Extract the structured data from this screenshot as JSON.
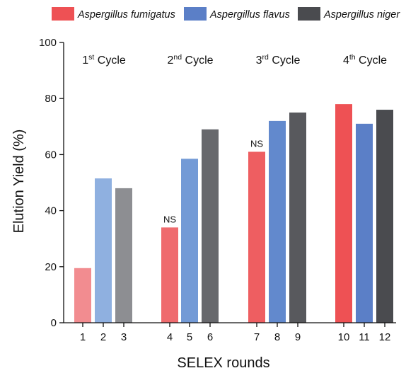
{
  "chart_data": {
    "type": "bar",
    "xlabel": "SELEX rounds",
    "ylabel": "Elution Yield (%)",
    "ylim": [
      0,
      100
    ],
    "yticks": [
      "0",
      "20",
      "40",
      "60",
      "80",
      "100"
    ],
    "grid": false,
    "legend_position": "top",
    "legend": [
      {
        "name": "Aspergillus fumigatus",
        "color": "#ee5154"
      },
      {
        "name": "Aspergillus flavus",
        "color": "#5b7fc7"
      },
      {
        "name": "Aspergillus niger",
        "color": "#4a4b4f"
      }
    ],
    "cycles": [
      {
        "number": "1",
        "suffix": "st",
        "word": "Cycle"
      },
      {
        "number": "2",
        "suffix": "nd",
        "word": "Cycle"
      },
      {
        "number": "3",
        "suffix": "rd",
        "word": "Cycle"
      },
      {
        "number": "4",
        "suffix": "th",
        "word": "Cycle"
      }
    ],
    "categories": [
      "1",
      "2",
      "3",
      "4",
      "5",
      "6",
      "7",
      "8",
      "9",
      "10",
      "11",
      "12"
    ],
    "bars": [
      {
        "round": "1",
        "value": 19.5,
        "species": "Aspergillus fumigatus",
        "color": "#f28c90"
      },
      {
        "round": "2",
        "value": 51.5,
        "species": "Aspergillus flavus",
        "color": "#8fb0e0"
      },
      {
        "round": "3",
        "value": 48,
        "species": "Aspergillus niger",
        "color": "#8d8e92"
      },
      {
        "round": "4",
        "value": 34,
        "species": "Aspergillus fumigatus",
        "color": "#ef6b6e",
        "annotation": "NS"
      },
      {
        "round": "5",
        "value": 58.5,
        "species": "Aspergillus flavus",
        "color": "#739ad6"
      },
      {
        "round": "6",
        "value": 69,
        "species": "Aspergillus niger",
        "color": "#67686c"
      },
      {
        "round": "7",
        "value": 61,
        "species": "Aspergillus fumigatus",
        "color": "#ee5e61",
        "annotation": "NS"
      },
      {
        "round": "8",
        "value": 72,
        "species": "Aspergillus flavus",
        "color": "#6289cd"
      },
      {
        "round": "9",
        "value": 75,
        "species": "Aspergillus niger",
        "color": "#58595d"
      },
      {
        "round": "10",
        "value": 78,
        "species": "Aspergillus fumigatus",
        "color": "#ee5154"
      },
      {
        "round": "11",
        "value": 71,
        "species": "Aspergillus flavus",
        "color": "#5b7fc7"
      },
      {
        "round": "12",
        "value": 76,
        "species": "Aspergillus niger",
        "color": "#4a4b4f"
      }
    ]
  }
}
